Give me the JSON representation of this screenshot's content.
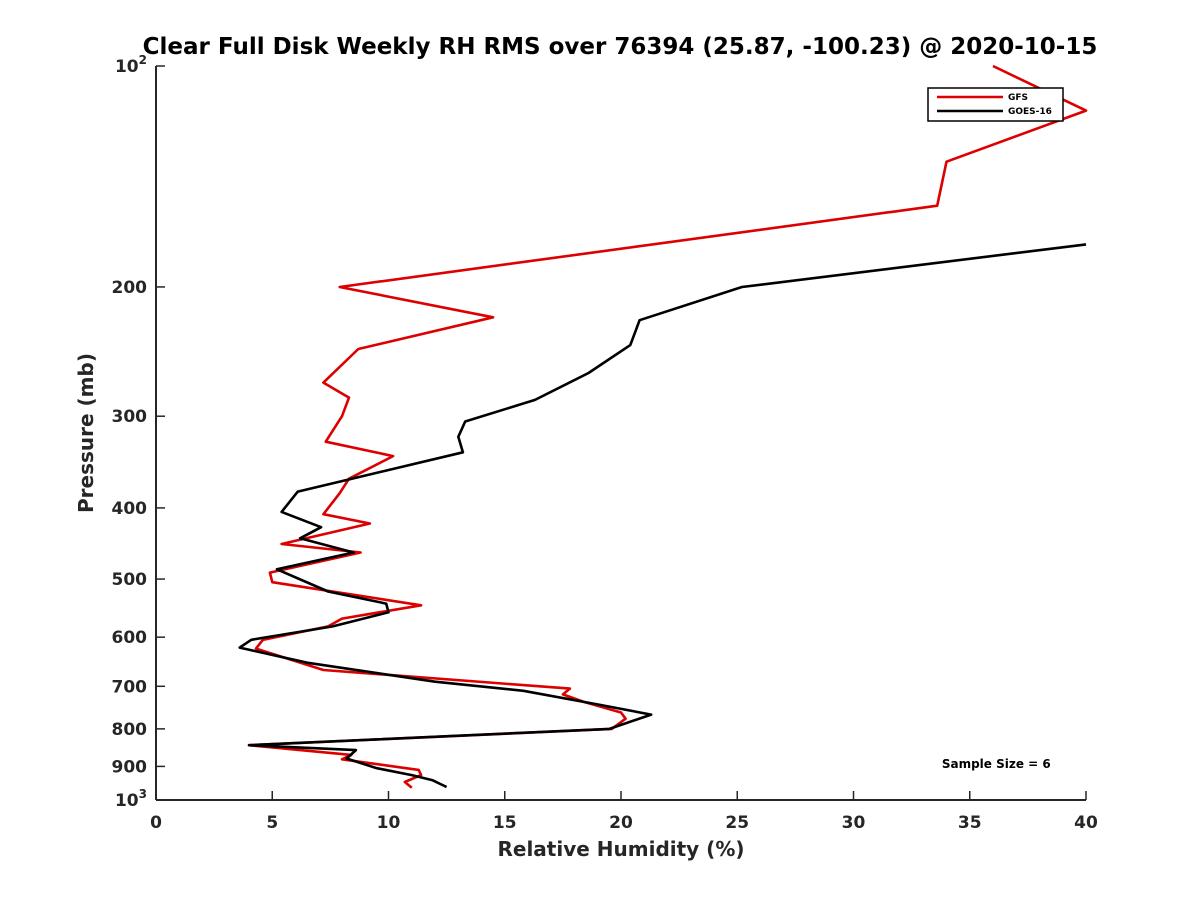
{
  "chart_data": {
    "type": "line",
    "title": "Clear Full Disk Weekly RH RMS over 76394 (25.87, -100.23) @ 2020-10-15",
    "xlabel": "Relative Humidity (%)",
    "ylabel": "Pressure (mb)",
    "xlim": [
      0,
      40
    ],
    "ylim": [
      100,
      1000
    ],
    "yscale": "log",
    "y_reversed": true,
    "grid": false,
    "legend_position": "top-right",
    "x_ticks": [
      {
        "value": 0,
        "label": "0"
      },
      {
        "value": 5,
        "label": "5"
      },
      {
        "value": 10,
        "label": "10"
      },
      {
        "value": 15,
        "label": "15"
      },
      {
        "value": 20,
        "label": "20"
      },
      {
        "value": 25,
        "label": "25"
      },
      {
        "value": 30,
        "label": "30"
      },
      {
        "value": 35,
        "label": "35"
      },
      {
        "value": 40,
        "label": "40"
      }
    ],
    "y_ticks": [
      {
        "value": 100,
        "base": "10",
        "exp": "2"
      },
      {
        "value": 200,
        "label": "200"
      },
      {
        "value": 300,
        "label": "300"
      },
      {
        "value": 400,
        "label": "400"
      },
      {
        "value": 500,
        "label": "500"
      },
      {
        "value": 600,
        "label": "600"
      },
      {
        "value": 700,
        "label": "700"
      },
      {
        "value": 800,
        "label": "800"
      },
      {
        "value": 900,
        "label": "900"
      },
      {
        "value": 1000,
        "base": "10",
        "exp": "3"
      }
    ],
    "series": [
      {
        "name": "GFS",
        "color": "#dd0000",
        "points": [
          [
            36.0,
            100
          ],
          [
            40.0,
            115
          ],
          [
            34.0,
            135
          ],
          [
            33.6,
            155
          ],
          [
            7.9,
            200
          ],
          [
            14.5,
            220
          ],
          [
            8.7,
            243
          ],
          [
            7.2,
            270
          ],
          [
            8.3,
            283
          ],
          [
            8.0,
            300
          ],
          [
            7.3,
            325
          ],
          [
            10.2,
            340
          ],
          [
            8.3,
            365
          ],
          [
            7.9,
            382
          ],
          [
            7.2,
            408
          ],
          [
            9.2,
            420
          ],
          [
            5.4,
            448
          ],
          [
            8.8,
            460
          ],
          [
            4.9,
            490
          ],
          [
            5.0,
            505
          ],
          [
            11.4,
            543
          ],
          [
            8.0,
            566
          ],
          [
            7.4,
            580
          ],
          [
            4.6,
            605
          ],
          [
            4.3,
            622
          ],
          [
            7.2,
            665
          ],
          [
            17.8,
            705
          ],
          [
            17.5,
            718
          ],
          [
            18.4,
            735
          ],
          [
            20.0,
            760
          ],
          [
            20.2,
            775
          ],
          [
            19.6,
            800
          ],
          [
            4.0,
            842
          ],
          [
            8.4,
            868
          ],
          [
            8.0,
            880
          ],
          [
            11.3,
            910
          ],
          [
            11.4,
            925
          ],
          [
            10.7,
            945
          ],
          [
            11.0,
            962
          ]
        ]
      },
      {
        "name": "GOES-16",
        "color": "#000000",
        "points": [
          [
            40.0,
            175
          ],
          [
            25.2,
            200
          ],
          [
            20.8,
            222
          ],
          [
            20.4,
            240
          ],
          [
            18.6,
            262
          ],
          [
            16.3,
            285
          ],
          [
            13.3,
            305
          ],
          [
            13.0,
            320
          ],
          [
            13.2,
            336
          ],
          [
            6.1,
            380
          ],
          [
            5.4,
            405
          ],
          [
            7.1,
            425
          ],
          [
            6.2,
            440
          ],
          [
            8.5,
            460
          ],
          [
            5.2,
            485
          ],
          [
            7.4,
            520
          ],
          [
            9.9,
            540
          ],
          [
            10.0,
            555
          ],
          [
            7.6,
            580
          ],
          [
            4.1,
            605
          ],
          [
            3.6,
            620
          ],
          [
            6.5,
            650
          ],
          [
            12.0,
            690
          ],
          [
            15.8,
            710
          ],
          [
            19.1,
            742
          ],
          [
            21.3,
            765
          ],
          [
            19.5,
            800
          ],
          [
            4.0,
            842
          ],
          [
            8.6,
            855
          ],
          [
            8.2,
            878
          ],
          [
            9.5,
            905
          ],
          [
            11.0,
            925
          ],
          [
            11.9,
            940
          ],
          [
            12.5,
            960
          ]
        ]
      }
    ],
    "annotations": [
      {
        "text": "Sample Size = 6",
        "x": 33.8,
        "y": 905
      }
    ]
  }
}
